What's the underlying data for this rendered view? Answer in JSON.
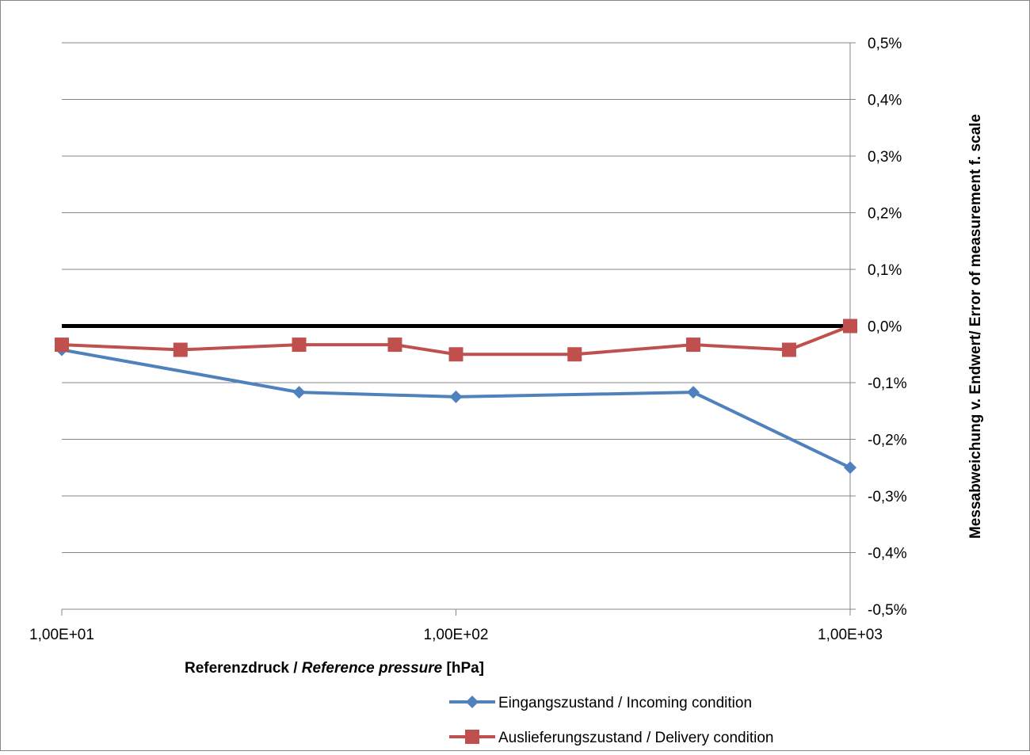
{
  "chart_data": {
    "type": "line",
    "x_scale": "log",
    "xlim": [
      10,
      1000
    ],
    "ylim": [
      -0.5,
      0.5
    ],
    "y_axis_side": "right",
    "grid": "horizontal",
    "xlabel_parts": [
      {
        "text": "Referenzdruck / ",
        "italic": false
      },
      {
        "text": "Reference pressure",
        "italic": true
      },
      {
        "text": " [hPa]",
        "italic": false
      }
    ],
    "ylabel": "Messabweichung v. Endwert/ Error of measurement f. scale",
    "x_ticks": [
      {
        "value": 10,
        "label": "1,00E+01"
      },
      {
        "value": 100,
        "label": "1,00E+02"
      },
      {
        "value": 1000,
        "label": "1,00E+03"
      }
    ],
    "y_ticks": [
      {
        "value": 0.5,
        "label": "0,5%"
      },
      {
        "value": 0.4,
        "label": "0,4%"
      },
      {
        "value": 0.3,
        "label": "0,3%"
      },
      {
        "value": 0.2,
        "label": "0,2%"
      },
      {
        "value": 0.1,
        "label": "0,1%"
      },
      {
        "value": 0.0,
        "label": "0,0%"
      },
      {
        "value": -0.1,
        "label": "-0,1%"
      },
      {
        "value": -0.2,
        "label": "-0,2%"
      },
      {
        "value": -0.3,
        "label": "-0,3%"
      },
      {
        "value": -0.4,
        "label": "-0,4%"
      },
      {
        "value": -0.5,
        "label": "-0,5%"
      }
    ],
    "reference_line": {
      "y": 0,
      "color": "#000000"
    },
    "legend_position": "bottom-right",
    "series": [
      {
        "name": "Eingangszustand / Incoming condition",
        "color": "#4f81bd",
        "marker": "diamond",
        "x": [
          10,
          40,
          100,
          400,
          1000
        ],
        "y": [
          -0.042,
          -0.117,
          -0.125,
          -0.117,
          -0.25
        ]
      },
      {
        "name": "Auslieferungszustand / Delivery condition",
        "color": "#c0504d",
        "marker": "square",
        "x": [
          10,
          20,
          40,
          70,
          100,
          200,
          400,
          700,
          1000
        ],
        "y": [
          -0.033,
          -0.042,
          -0.033,
          -0.033,
          -0.05,
          -0.05,
          -0.033,
          -0.042,
          0.0
        ]
      }
    ]
  }
}
